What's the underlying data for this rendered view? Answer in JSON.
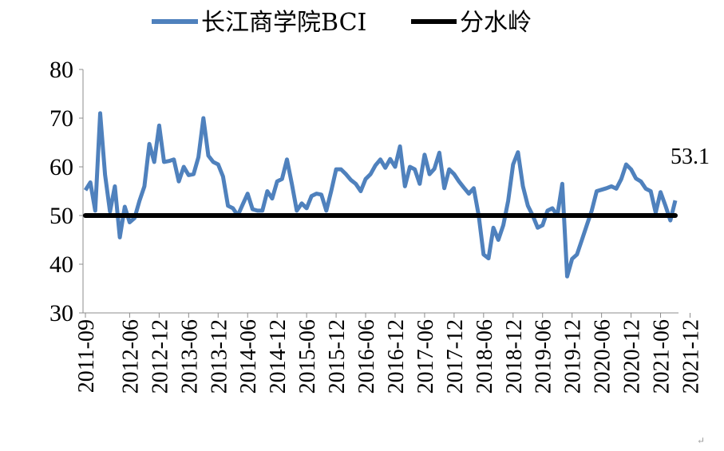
{
  "chart_data": {
    "type": "line",
    "title": "",
    "xlabel": "",
    "ylabel": "",
    "ylim": [
      30,
      80
    ],
    "yticks": [
      "30",
      "40",
      "50",
      "60",
      "70",
      "80"
    ],
    "x_tick_labels": [
      "2011-09",
      "2012-06",
      "2012-12",
      "2013-06",
      "2013-12",
      "2014-06",
      "2014-12",
      "2015-06",
      "2015-12",
      "2016-06",
      "2016-12",
      "2017-06",
      "2017-12",
      "2018-06",
      "2018-12",
      "2019-06",
      "2019-12",
      "2020-06",
      "2020-12",
      "2021-06",
      "2021-12"
    ],
    "series": [
      {
        "name": "长江商学院BCI",
        "color": "#4F81BD",
        "x_start": "2011-09",
        "frequency": "monthly",
        "values": [
          55.2,
          56.8,
          51.0,
          71.0,
          58.4,
          50.8,
          56.0,
          45.5,
          51.8,
          48.6,
          49.5,
          53.0,
          56.0,
          64.7,
          61.0,
          68.5,
          61.0,
          61.2,
          61.5,
          57.0,
          60.0,
          58.3,
          58.5,
          62.0,
          70.0,
          62.3,
          61.0,
          60.5,
          58.0,
          52.0,
          51.5,
          50.0,
          52.3,
          54.5,
          51.3,
          51.0,
          51.0,
          55.0,
          53.5,
          57.0,
          57.5,
          61.5,
          56.5,
          51.0,
          52.5,
          51.5,
          54.0,
          54.5,
          54.3,
          51.0,
          55.0,
          59.5,
          59.5,
          58.5,
          57.3,
          56.5,
          55.0,
          57.5,
          58.5,
          60.3,
          61.5,
          59.8,
          61.6,
          60.0,
          64.2,
          56.0,
          60.0,
          59.5,
          56.5,
          62.5,
          58.5,
          59.6,
          62.9,
          55.6,
          59.5,
          58.5,
          57.0,
          55.7,
          54.5,
          55.6,
          50.0,
          42.0,
          41.2,
          47.5,
          45.0,
          48.0,
          53.0,
          60.5,
          63.0,
          56.0,
          52.0,
          50.0,
          47.5,
          48.0,
          51.0,
          51.5,
          50.0,
          56.5,
          37.5,
          41.1,
          42.0,
          45.0,
          48.0,
          51.0,
          55.0,
          55.3,
          55.6,
          56.0,
          55.5,
          57.5,
          60.5,
          59.5,
          57.6,
          57.0,
          55.5,
          55.0,
          50.6,
          54.8,
          52.0,
          49.0,
          53.1
        ]
      },
      {
        "name": "分水岭",
        "color": "#000000",
        "constant": 50
      }
    ],
    "annotations": [
      {
        "text": "53.1",
        "x": "2021-12",
        "y": 53.1
      }
    ],
    "legend": {
      "position": "top",
      "entries": [
        "长江商学院BCI",
        "分水岭"
      ]
    },
    "grid": false
  },
  "footer_mark": "↵"
}
